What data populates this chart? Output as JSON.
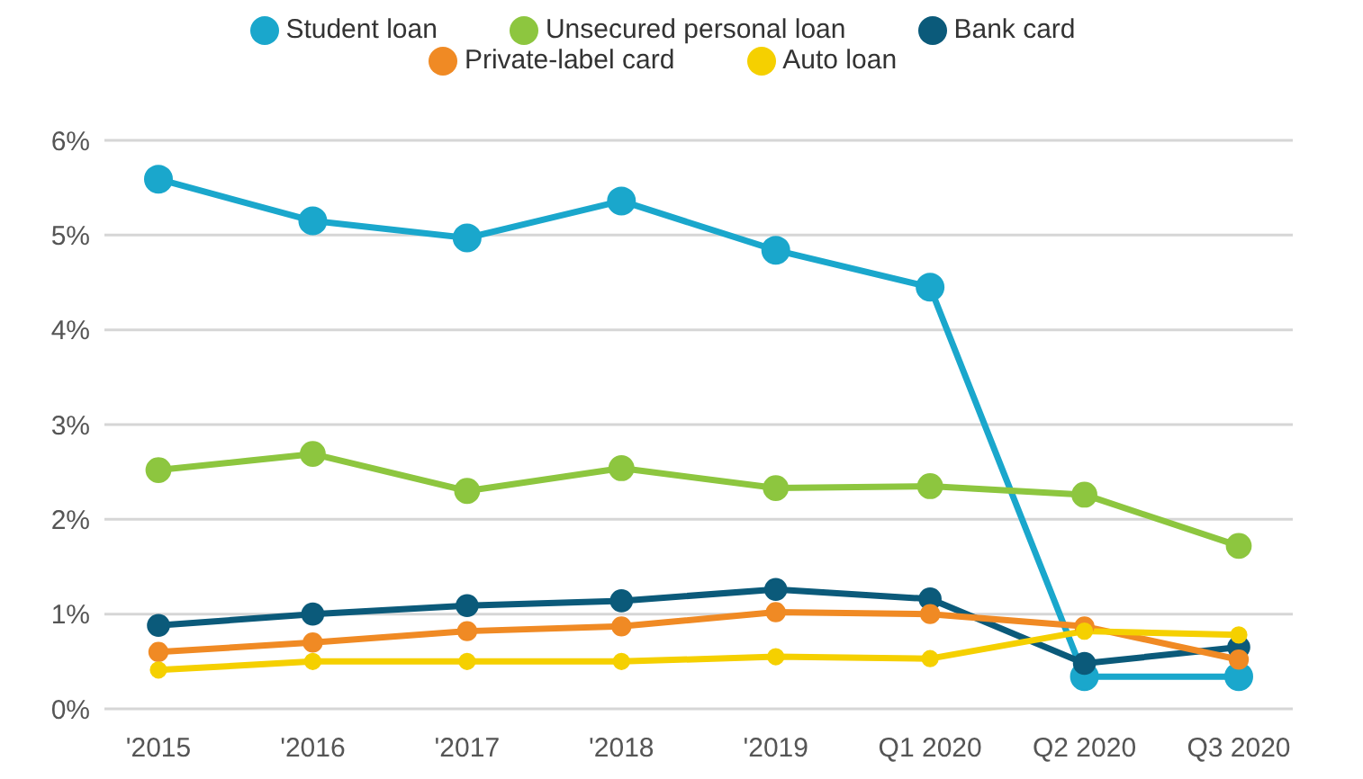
{
  "chart_data": {
    "type": "line",
    "categories": [
      "'2015",
      "'2016",
      "'2017",
      "'2018",
      "'2019",
      "Q1 2020",
      "Q2 2020",
      "Q3 2020"
    ],
    "series": [
      {
        "name": "Student loan",
        "color": "#1aa7cc",
        "values": [
          5.59,
          5.15,
          4.97,
          5.36,
          4.84,
          4.45,
          0.34,
          0.34
        ]
      },
      {
        "name": "Unsecured personal loan",
        "color": "#8dc63f",
        "values": [
          2.52,
          2.69,
          2.3,
          2.54,
          2.33,
          2.35,
          2.26,
          1.72
        ]
      },
      {
        "name": "Bank card",
        "color": "#0b5a7a",
        "values": [
          0.88,
          1.0,
          1.09,
          1.14,
          1.26,
          1.16,
          0.48,
          0.65
        ]
      },
      {
        "name": "Private-label card",
        "color": "#f08a24",
        "values": [
          0.6,
          0.7,
          0.82,
          0.87,
          1.02,
          1.0,
          0.87,
          0.52
        ]
      },
      {
        "name": "Auto loan",
        "color": "#f5d000",
        "values": [
          0.41,
          0.5,
          0.5,
          0.5,
          0.55,
          0.53,
          0.82,
          0.78
        ]
      }
    ],
    "ylim": [
      0,
      6
    ],
    "yticks": [
      {
        "value": 0,
        "label": "0%"
      },
      {
        "value": 1,
        "label": "1%"
      },
      {
        "value": 2,
        "label": "2%"
      },
      {
        "value": 3,
        "label": "3%"
      },
      {
        "value": 4,
        "label": "4%"
      },
      {
        "value": 5,
        "label": "5%"
      },
      {
        "value": 6,
        "label": "6%"
      }
    ],
    "grid": "y",
    "legend": "top",
    "marker": "circle",
    "line_style": "solid"
  }
}
